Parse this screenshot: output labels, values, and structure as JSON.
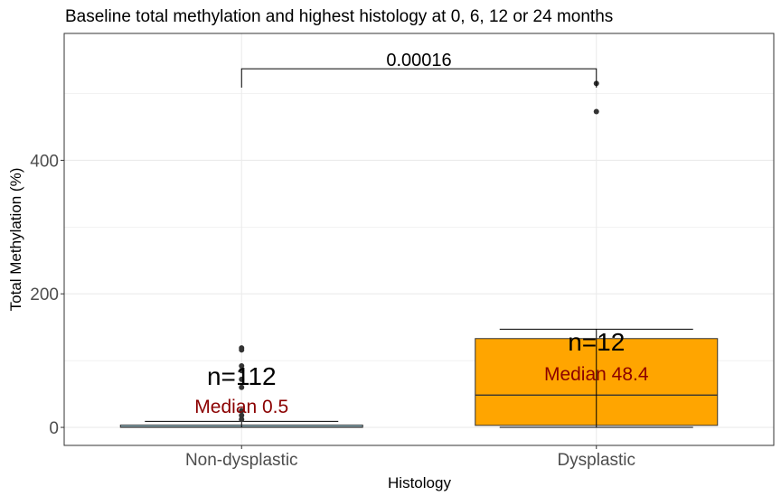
{
  "chart_data": {
    "type": "boxplot",
    "title": "Baseline total methylation and highest histology at 0, 6, 12 or 24 months",
    "xlabel": "Histology",
    "ylabel": "Total Methylation (%)",
    "ylim": [
      -27,
      590
    ],
    "yticks": [
      0,
      200,
      400
    ],
    "grid": true,
    "categories": [
      "Non-dysplastic",
      "Dysplastic"
    ],
    "groups": [
      {
        "category": "Non-dysplastic",
        "n_label": "n=112",
        "median_label": "Median 0.5",
        "median": 0.5,
        "q1": 0.1,
        "q3": 3.5,
        "whisker_low": 0,
        "whisker_high": 9,
        "fill": "#add8e6",
        "outliers": [
          12,
          18,
          25,
          60,
          72,
          85,
          92,
          116,
          119
        ]
      },
      {
        "category": "Dysplastic",
        "n_label": "n=12",
        "median_label": "Median 48.4",
        "median": 48.4,
        "q1": 3,
        "q3": 133,
        "whisker_low": 0,
        "whisker_high": 147,
        "fill": "#ffa500",
        "outliers": [
          473,
          515
        ]
      }
    ],
    "comparison": {
      "label": "0.00016",
      "y": 537,
      "tick_to": 525
    },
    "colors": {
      "median_text": "#8b0000",
      "grid": "#ebebeb",
      "panel_border": "#333333",
      "points": "#333333"
    }
  }
}
